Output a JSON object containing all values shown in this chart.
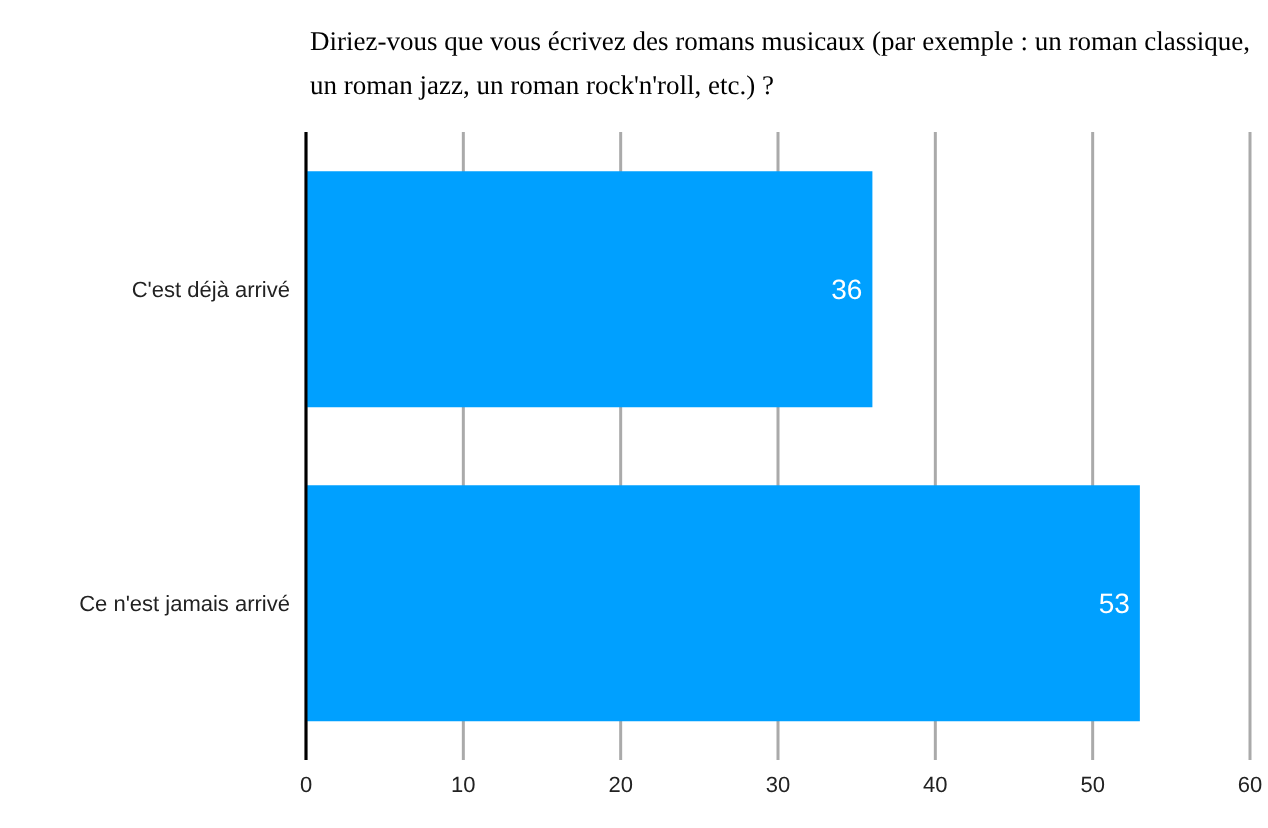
{
  "chart_data": {
    "type": "bar",
    "orientation": "horizontal",
    "title": "Diriez-vous que vous écrivez des romans musicaux (par exemple : un roman classique, un roman jazz, un roman rock'n'roll, etc.) ?",
    "categories": [
      "C'est déjà arrivé",
      "Ce n'est jamais arrivé"
    ],
    "values": [
      36,
      53
    ],
    "color": "#00a0ff",
    "xlim": [
      0,
      60
    ],
    "xticks": [
      0,
      10,
      20,
      30,
      40,
      50,
      60
    ],
    "grid": "x",
    "data_labels": true,
    "legend": false
  }
}
